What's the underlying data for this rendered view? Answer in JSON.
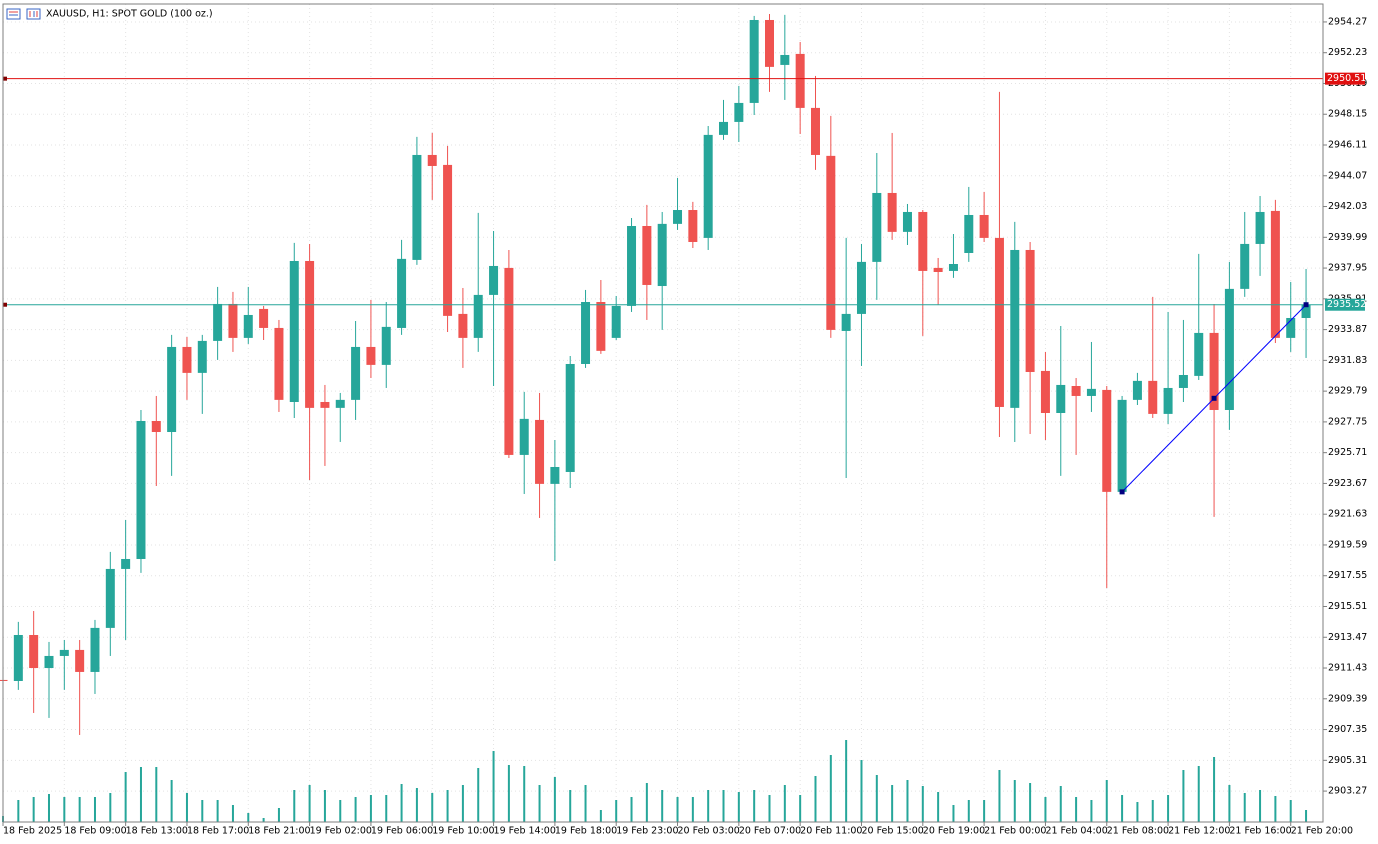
{
  "chart_data": {
    "type": "candlestick",
    "title": "XAUUSD, H1:  SPOT GOLD (100 oz.)",
    "categories": [
      "18 Feb 2025",
      null,
      null,
      null,
      "18 Feb 09:00",
      null,
      null,
      null,
      "18 Feb 13:00",
      null,
      null,
      null,
      "18 Feb 17:00",
      null,
      null,
      null,
      "18 Feb 21:00",
      null,
      null,
      null,
      "19 Feb 02:00",
      null,
      null,
      null,
      "19 Feb 06:00",
      null,
      null,
      null,
      "19 Feb 10:00",
      null,
      null,
      null,
      "19 Feb 14:00",
      null,
      null,
      null,
      "19 Feb 18:00",
      null,
      null,
      null,
      "19 Feb 23:00",
      null,
      null,
      null,
      "20 Feb 03:00",
      null,
      null,
      null,
      "20 Feb 07:00",
      null,
      null,
      null,
      "20 Feb 11:00",
      null,
      null,
      null,
      "20 Feb 15:00",
      null,
      null,
      null,
      "20 Feb 19:00",
      null,
      null,
      null,
      "21 Feb 00:00",
      null,
      null,
      null,
      "21 Feb 04:00",
      null,
      null,
      null,
      "21 Feb 08:00",
      null,
      null,
      null,
      "21 Feb 12:00",
      null,
      null,
      null,
      "21 Feb 16:00",
      null,
      null,
      null,
      "21 Feb 20:00",
      null
    ],
    "open": [
      2910.64,
      2910.57,
      2913.62,
      2911.43,
      2912.23,
      2912.63,
      2911.17,
      2914.09,
      2918.0,
      2918.66,
      2927.81,
      2927.08,
      2932.72,
      2931.0,
      2933.12,
      2935.57,
      2933.32,
      2935.24,
      2933.98,
      2929.07,
      2938.42,
      2929.07,
      2928.68,
      2929.21,
      2932.72,
      2931.53,
      2933.98,
      2938.49,
      2945.45,
      2944.79,
      2934.91,
      2933.32,
      2936.17,
      2937.96,
      2925.56,
      2927.88,
      2923.64,
      2924.43,
      2931.59,
      2935.7,
      2933.32,
      2935.44,
      2940.74,
      2936.76,
      2940.88,
      2941.8,
      2939.95,
      2946.78,
      2947.64,
      2948.9,
      2954.4,
      2951.42,
      2952.15,
      2948.57,
      2945.39,
      2933.78,
      2934.91,
      2938.36,
      2942.93,
      2940.35,
      2941.67,
      2937.96,
      2937.76,
      2938.95,
      2941.47,
      2939.95,
      2928.68,
      2939.15,
      2931.13,
      2928.34,
      2930.13,
      2929.47,
      2929.87,
      2923.11,
      2929.21,
      2930.47,
      2928.28,
      2930.0,
      2930.8,
      2933.65,
      2928.54,
      2936.57,
      2939.55,
      2941.74,
      2933.32,
      2934.64
    ],
    "high": [
      2910.71,
      2914.49,
      2915.21,
      2913.16,
      2913.29,
      2913.29,
      2914.62,
      2919.13,
      2921.25,
      2928.54,
      2929.47,
      2933.52,
      2933.38,
      2933.52,
      2936.7,
      2936.37,
      2936.7,
      2935.44,
      2934.51,
      2939.62,
      2939.55,
      2930.2,
      2929.67,
      2934.44,
      2935.84,
      2935.7,
      2939.82,
      2946.65,
      2946.91,
      2946.05,
      2936.63,
      2941.61,
      2940.41,
      2939.15,
      2929.74,
      2929.67,
      2926.55,
      2932.12,
      2936.5,
      2937.16,
      2936.1,
      2941.27,
      2942.14,
      2941.67,
      2943.93,
      2942.34,
      2947.37,
      2949.1,
      2950.03,
      2954.67,
      2954.8,
      2954.74,
      2952.94,
      2950.69,
      2948.04,
      2939.95,
      2939.55,
      2945.58,
      2946.91,
      2942.2,
      2941.8,
      2938.62,
      2940.21,
      2943.33,
      2943.0,
      2949.63,
      2941.01,
      2939.68,
      2932.39,
      2934.11,
      2930.66,
      2933.05,
      2930.13,
      2929.47,
      2931.0,
      2936.04,
      2935.04,
      2934.51,
      2938.89,
      2935.57,
      2938.36,
      2941.67,
      2942.73,
      2942.47,
      2937.03,
      2937.89
    ],
    "low": [
      2910.51,
      2909.98,
      2908.45,
      2908.12,
      2909.98,
      2906.99,
      2909.71,
      2912.23,
      2913.29,
      2917.74,
      2923.5,
      2924.17,
      2929.21,
      2928.28,
      2931.86,
      2932.39,
      2932.92,
      2933.18,
      2928.41,
      2928.01,
      2923.9,
      2924.83,
      2926.42,
      2927.88,
      2930.66,
      2930.0,
      2933.52,
      2938.16,
      2942.47,
      2933.71,
      2931.33,
      2932.39,
      2930.13,
      2925.36,
      2922.97,
      2921.38,
      2918.53,
      2923.37,
      2931.33,
      2932.26,
      2933.18,
      2935.04,
      2934.51,
      2933.85,
      2940.48,
      2939.28,
      2939.15,
      2946.45,
      2946.31,
      2948.1,
      2949.63,
      2949.1,
      2946.84,
      2944.46,
      2933.32,
      2924.03,
      2931.46,
      2935.84,
      2939.82,
      2939.48,
      2933.45,
      2935.51,
      2937.3,
      2938.36,
      2939.68,
      2926.75,
      2926.42,
      2926.95,
      2926.55,
      2924.17,
      2925.56,
      2928.41,
      2916.74,
      2922.97,
      2928.87,
      2928.01,
      2927.61,
      2929.07,
      2930.53,
      2921.45,
      2927.22,
      2936.04,
      2937.43,
      2932.98,
      2932.39,
      2931.99
    ],
    "close": [
      2910.57,
      2913.62,
      2911.43,
      2912.23,
      2912.63,
      2911.17,
      2914.09,
      2918.0,
      2918.66,
      2927.81,
      2927.08,
      2932.72,
      2931.0,
      2933.12,
      2935.57,
      2933.32,
      2934.84,
      2933.98,
      2929.21,
      2938.42,
      2928.68,
      2928.68,
      2929.21,
      2932.72,
      2931.53,
      2934.05,
      2938.56,
      2945.45,
      2944.72,
      2934.78,
      2933.32,
      2936.17,
      2938.09,
      2925.56,
      2927.95,
      2923.64,
      2924.76,
      2931.59,
      2935.7,
      2932.46,
      2935.44,
      2940.74,
      2936.83,
      2940.88,
      2941.8,
      2939.68,
      2946.78,
      2947.64,
      2948.9,
      2954.4,
      2951.29,
      2952.08,
      2948.57,
      2945.45,
      2933.85,
      2934.91,
      2938.36,
      2942.93,
      2940.35,
      2941.67,
      2937.76,
      2937.69,
      2938.22,
      2941.47,
      2939.95,
      2928.74,
      2939.15,
      2931.06,
      2928.34,
      2930.2,
      2929.47,
      2929.94,
      2923.11,
      2929.21,
      2930.47,
      2928.28,
      2930.0,
      2930.86,
      2933.65,
      2928.54,
      2936.57,
      2939.55,
      2941.67,
      2933.32,
      2934.64,
      2935.52
    ],
    "volume": [
      6,
      22,
      25,
      28,
      25,
      25,
      25,
      29,
      50,
      55,
      55,
      42,
      29,
      22,
      22,
      17,
      9,
      4,
      14,
      32,
      37,
      32,
      22,
      25,
      27,
      27,
      38,
      34,
      29,
      32,
      37,
      54,
      71,
      57,
      56,
      37,
      45,
      32,
      37,
      12,
      22,
      25,
      39,
      32,
      25,
      25,
      32,
      32,
      30,
      32,
      27,
      37,
      27,
      46,
      67,
      82,
      62,
      47,
      37,
      42,
      36,
      30,
      17,
      22,
      22,
      52,
      42,
      39,
      25,
      36,
      25,
      22,
      42,
      27,
      20,
      22,
      27,
      52,
      56,
      65,
      37,
      29,
      32,
      26,
      22,
      12
    ],
    "up_color": "#26a69a",
    "down_color": "#ef5350",
    "volume_color": "#26a69a",
    "ylim": [
      2901.22,
      2955.46
    ],
    "yticks": [
      2903.27,
      2905.31,
      2907.35,
      2909.39,
      2911.43,
      2913.47,
      2915.51,
      2917.55,
      2919.59,
      2921.63,
      2923.67,
      2925.71,
      2927.75,
      2929.79,
      2931.83,
      2933.87,
      2935.91,
      2937.95,
      2939.99,
      2942.03,
      2944.07,
      2946.11,
      2948.15,
      2950.19,
      2952.23,
      2954.27
    ],
    "grid": true,
    "price_lines": [
      {
        "value": 2950.51,
        "color": "#e01010"
      },
      {
        "value": 2935.52,
        "color": "#26a69a"
      }
    ],
    "trend_line": {
      "x": [
        73,
        85
      ],
      "values": [
        2923.11,
        2935.52
      ],
      "color": "#0000ff"
    }
  }
}
